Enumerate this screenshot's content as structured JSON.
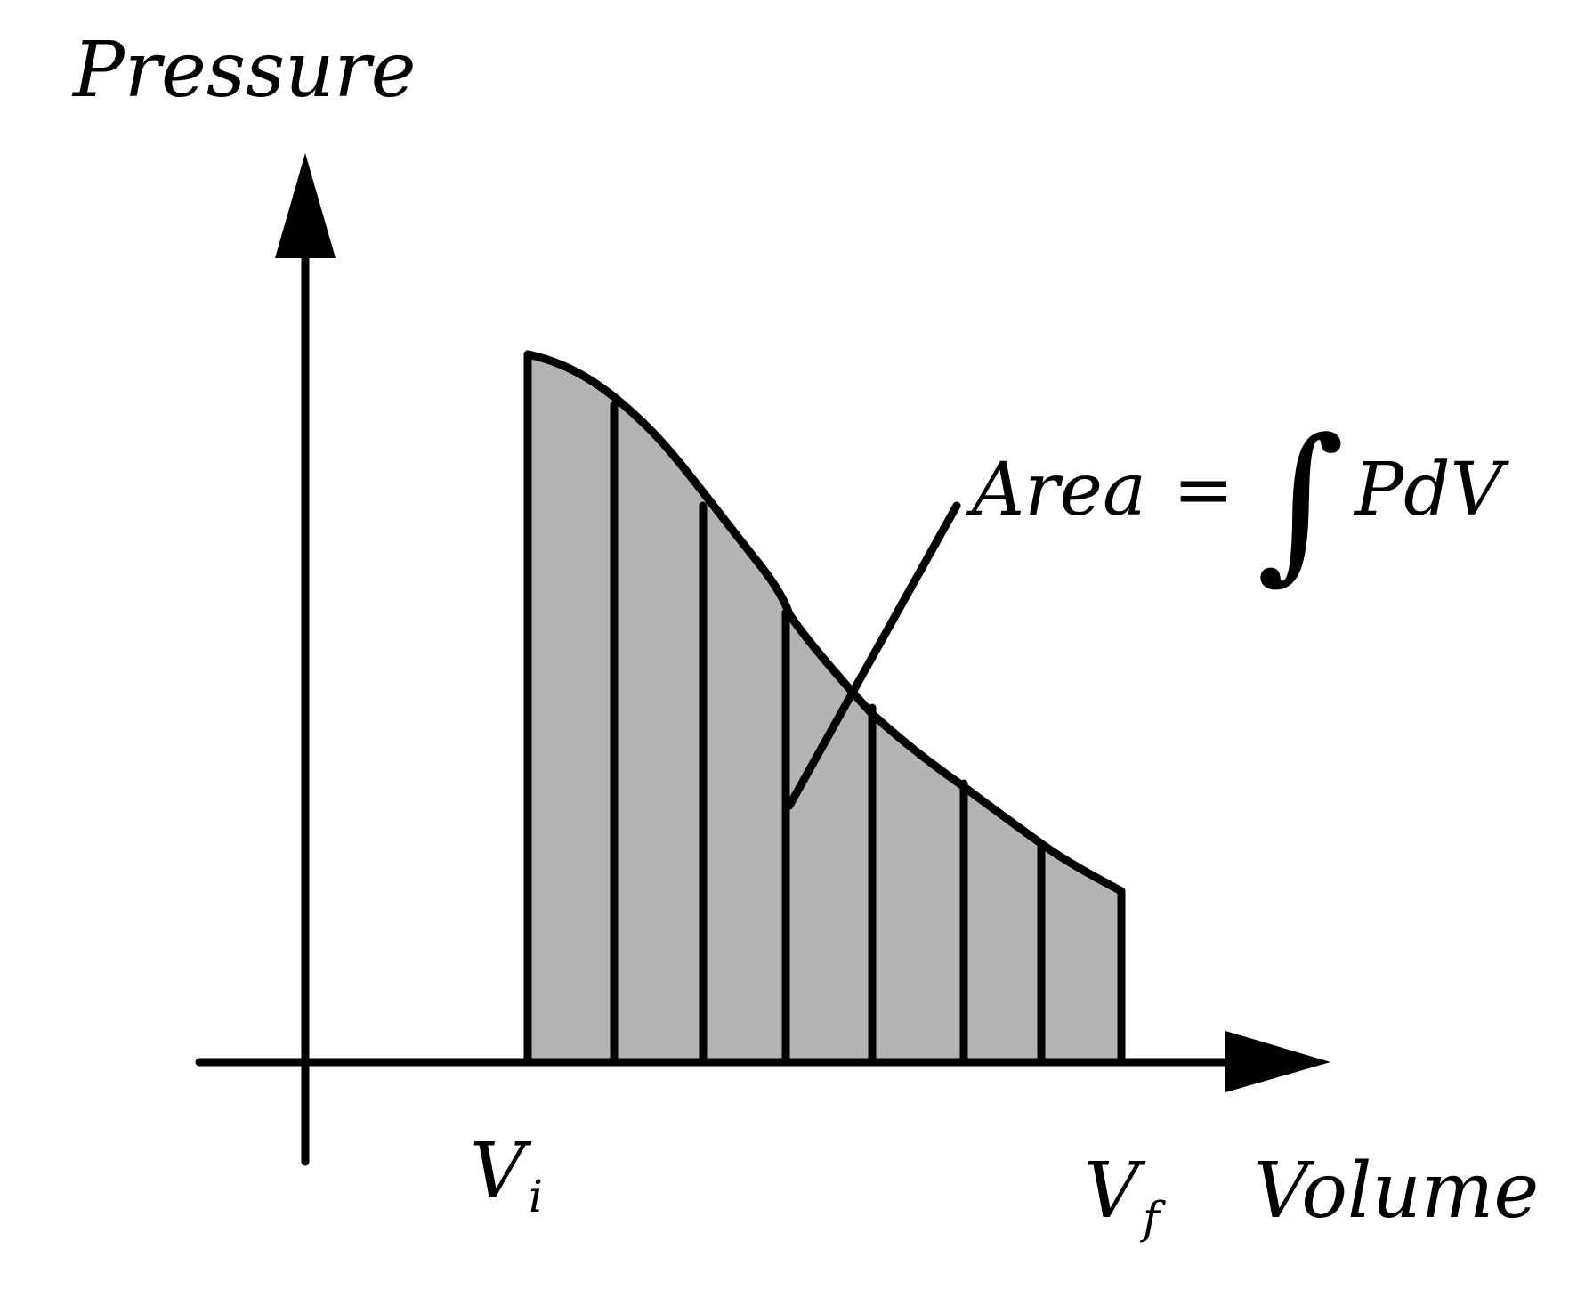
{
  "colors": {
    "fill": "#b4b4b4",
    "stroke": "#000000",
    "background": "#ffffff"
  },
  "y_axis": {
    "label": "Pressure"
  },
  "x_axis": {
    "label": "Volume"
  },
  "markers": {
    "v_initial": {
      "main": "V",
      "sub": "i"
    },
    "v_final": {
      "main": "V",
      "sub": "f"
    }
  },
  "annotation": {
    "lhs": "Area",
    "equals": "=",
    "integral": "∫",
    "rhs": "PdV"
  },
  "strip_count": 7
}
